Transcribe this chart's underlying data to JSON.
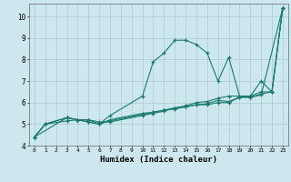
{
  "title": "",
  "xlabel": "Humidex (Indice chaleur)",
  "ylabel": "",
  "background_color": "#cce8ee",
  "grid_color": "#aacccc",
  "line_color": "#1a7a6e",
  "xlim": [
    -0.5,
    23.5
  ],
  "ylim": [
    4,
    10.6
  ],
  "yticks": [
    4,
    5,
    6,
    7,
    8,
    9,
    10
  ],
  "xticks": [
    0,
    1,
    2,
    3,
    4,
    5,
    6,
    7,
    8,
    9,
    10,
    11,
    12,
    13,
    14,
    15,
    16,
    17,
    18,
    19,
    20,
    21,
    22,
    23
  ],
  "series": [
    {
      "x": [
        0,
        1,
        3,
        4,
        5,
        6,
        7,
        10,
        11,
        12,
        13,
        14,
        15,
        16,
        17,
        18,
        19,
        20,
        21,
        22,
        23
      ],
      "y": [
        4.4,
        5.0,
        5.15,
        5.2,
        5.1,
        5.0,
        5.4,
        6.3,
        7.9,
        8.3,
        8.9,
        8.9,
        8.7,
        8.3,
        7.0,
        8.1,
        6.3,
        6.3,
        7.0,
        6.5,
        10.4
      ]
    },
    {
      "x": [
        0,
        1,
        3,
        4,
        5,
        6,
        7,
        10,
        11,
        12,
        13,
        14,
        15,
        16,
        17,
        18,
        19,
        20,
        21,
        22,
        23
      ],
      "y": [
        4.4,
        5.0,
        5.3,
        5.2,
        5.1,
        5.0,
        5.2,
        5.5,
        5.55,
        5.65,
        5.75,
        5.85,
        6.0,
        6.05,
        6.2,
        6.3,
        6.3,
        6.3,
        6.5,
        6.5,
        10.4
      ]
    },
    {
      "x": [
        0,
        1,
        3,
        4,
        5,
        6,
        7,
        10,
        11,
        12,
        13,
        14,
        15,
        16,
        17,
        18,
        19,
        20,
        21,
        22,
        23
      ],
      "y": [
        4.4,
        5.0,
        5.3,
        5.2,
        5.2,
        5.0,
        5.15,
        5.45,
        5.55,
        5.65,
        5.7,
        5.8,
        5.9,
        5.95,
        6.1,
        6.05,
        6.25,
        6.25,
        6.4,
        6.5,
        10.4
      ]
    },
    {
      "x": [
        0,
        3,
        4,
        5,
        6,
        7,
        10,
        11,
        12,
        13,
        14,
        15,
        16,
        17,
        18,
        19,
        20,
        21,
        23
      ],
      "y": [
        4.4,
        5.3,
        5.2,
        5.2,
        5.1,
        5.1,
        5.4,
        5.5,
        5.6,
        5.75,
        5.8,
        5.9,
        5.9,
        6.0,
        6.0,
        6.25,
        6.25,
        6.35,
        10.4
      ]
    }
  ]
}
